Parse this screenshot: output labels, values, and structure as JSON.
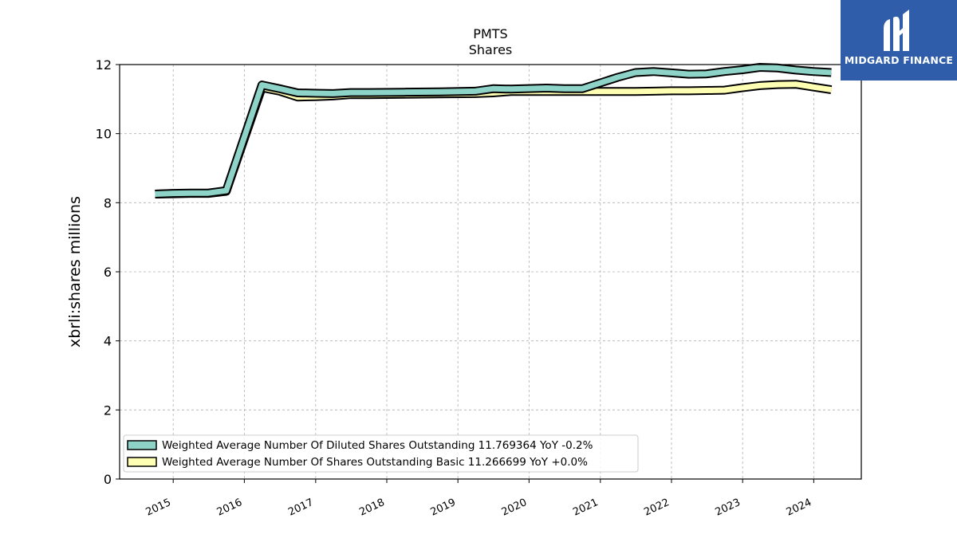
{
  "chart_data": {
    "type": "line",
    "title": "PMTS",
    "subtitle": "Shares",
    "xlabel": "",
    "ylabel": "xbrli:shares millions",
    "ylim": [
      0,
      12
    ],
    "yticks": [
      0,
      2,
      4,
      6,
      8,
      10,
      12
    ],
    "xlim": [
      "2014-04-01",
      "2024-09-01"
    ],
    "xticks": [
      "2015",
      "2016",
      "2017",
      "2018",
      "2019",
      "2020",
      "2021",
      "2022",
      "2023",
      "2024"
    ],
    "grid": true,
    "legend_position": "lower-left",
    "series": [
      {
        "name": "Weighted Average Number Of Diluted Shares Outstanding  11.769364 YoY -0.2%",
        "color": "#8dd3c7",
        "points": [
          [
            "2014-09-30",
            8.25
          ],
          [
            "2014-12-31",
            8.27
          ],
          [
            "2015-03-31",
            8.28
          ],
          [
            "2015-06-30",
            8.28
          ],
          [
            "2015-09-30",
            8.35
          ],
          [
            "2016-03-31",
            11.41
          ],
          [
            "2016-06-30",
            11.3
          ],
          [
            "2016-09-30",
            11.18
          ],
          [
            "2016-12-31",
            11.17
          ],
          [
            "2017-03-31",
            11.16
          ],
          [
            "2017-06-30",
            11.19
          ],
          [
            "2017-09-30",
            11.19
          ],
          [
            "2018-03-31",
            11.2
          ],
          [
            "2018-09-30",
            11.21
          ],
          [
            "2019-03-31",
            11.23
          ],
          [
            "2019-06-30",
            11.3
          ],
          [
            "2019-09-30",
            11.29
          ],
          [
            "2020-03-31",
            11.32
          ],
          [
            "2020-06-30",
            11.3
          ],
          [
            "2020-09-30",
            11.3
          ],
          [
            "2021-03-31",
            11.63
          ],
          [
            "2021-06-30",
            11.77
          ],
          [
            "2021-09-30",
            11.8
          ],
          [
            "2021-12-31",
            11.76
          ],
          [
            "2022-03-31",
            11.72
          ],
          [
            "2022-06-30",
            11.73
          ],
          [
            "2022-09-30",
            11.8
          ],
          [
            "2022-12-31",
            11.85
          ],
          [
            "2023-03-31",
            11.92
          ],
          [
            "2023-06-30",
            11.9
          ],
          [
            "2023-09-30",
            11.84
          ],
          [
            "2023-12-31",
            11.8
          ],
          [
            "2024-03-31",
            11.77
          ]
        ]
      },
      {
        "name": "Weighted Average Number Of Shares Outstanding Basic  11.266699 YoY +0.0%",
        "color": "#ffffb3",
        "points": [
          [
            "2014-09-30",
            8.25
          ],
          [
            "2014-12-31",
            8.26
          ],
          [
            "2015-03-31",
            8.27
          ],
          [
            "2015-06-30",
            8.27
          ],
          [
            "2015-09-30",
            8.33
          ],
          [
            "2016-03-31",
            11.33
          ],
          [
            "2016-06-30",
            11.23
          ],
          [
            "2016-09-30",
            11.06
          ],
          [
            "2016-12-31",
            11.07
          ],
          [
            "2017-03-31",
            11.09
          ],
          [
            "2017-06-30",
            11.13
          ],
          [
            "2017-09-30",
            11.13
          ],
          [
            "2018-03-31",
            11.14
          ],
          [
            "2018-09-30",
            11.15
          ],
          [
            "2019-03-31",
            11.16
          ],
          [
            "2019-06-30",
            11.18
          ],
          [
            "2019-09-30",
            11.22
          ],
          [
            "2020-03-31",
            11.22
          ],
          [
            "2020-06-30",
            11.22
          ],
          [
            "2020-09-30",
            11.22
          ],
          [
            "2021-03-31",
            11.22
          ],
          [
            "2021-06-30",
            11.22
          ],
          [
            "2021-09-30",
            11.23
          ],
          [
            "2021-12-31",
            11.24
          ],
          [
            "2022-03-31",
            11.24
          ],
          [
            "2022-06-30",
            11.25
          ],
          [
            "2022-09-30",
            11.26
          ],
          [
            "2022-12-31",
            11.33
          ],
          [
            "2023-03-31",
            11.39
          ],
          [
            "2023-06-30",
            11.42
          ],
          [
            "2023-09-30",
            11.43
          ],
          [
            "2023-12-31",
            11.35
          ],
          [
            "2024-03-31",
            11.27
          ]
        ]
      }
    ]
  },
  "logo": {
    "text": "MIDGARD FINANCE",
    "background": "#2f5daa"
  }
}
